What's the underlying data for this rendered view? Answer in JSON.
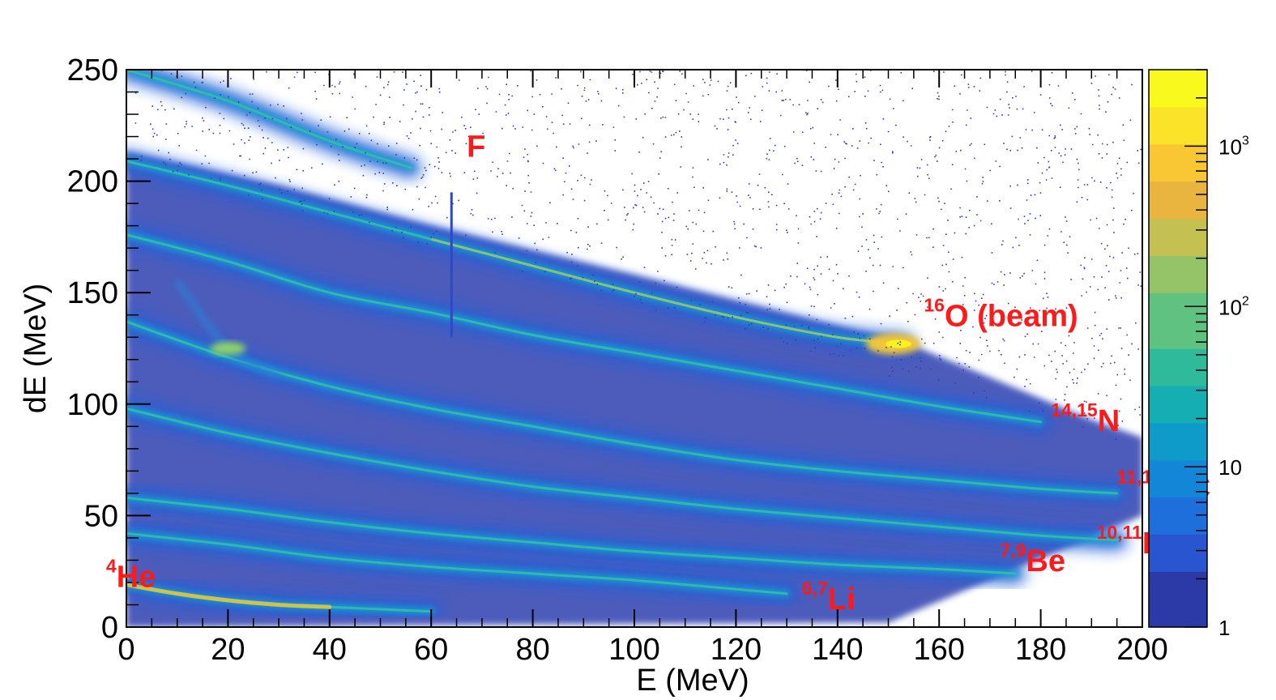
{
  "chart_data": {
    "type": "heatmap",
    "title": "",
    "xlabel": "E (MeV)",
    "ylabel": "dE (MeV)",
    "xlim": [
      0,
      200
    ],
    "ylim": [
      0,
      250
    ],
    "x_ticks": [
      "0",
      "20",
      "40",
      "60",
      "80",
      "100",
      "120",
      "140",
      "160",
      "180",
      "200"
    ],
    "y_ticks": [
      "0",
      "50",
      "100",
      "150",
      "200",
      "250"
    ],
    "colorbar": {
      "scale": "log",
      "range": [
        1,
        3000
      ],
      "tick_labels": [
        {
          "value": 1,
          "label": "1"
        },
        {
          "value": 10,
          "label": "10"
        },
        {
          "value": 100,
          "base": "10",
          "exp": "2"
        },
        {
          "value": 1000,
          "base": "10",
          "exp": "3"
        }
      ],
      "colors": [
        "#2b3aa6",
        "#2a55d0",
        "#1e6fdc",
        "#1386d8",
        "#0f9bc9",
        "#15aeb3",
        "#2fbb9b",
        "#5fc281",
        "#95c468",
        "#c5c052",
        "#e9b53e",
        "#f8c733",
        "#fbe32a",
        "#f9f91d"
      ]
    },
    "series": [
      {
        "name": "F",
        "label_x": 67,
        "label_y": 211,
        "x": [
          0,
          20,
          40,
          56
        ],
        "y": [
          250,
          236,
          218,
          206
        ]
      },
      {
        "name": "O (beam)",
        "sup": "16",
        "label_x": 157,
        "label_y": 135,
        "x": [
          0,
          20,
          40,
          60,
          80,
          100,
          120,
          140,
          153
        ],
        "y": [
          209,
          198,
          186,
          174,
          162,
          150,
          139,
          130,
          127
        ]
      },
      {
        "name": "N",
        "sup": "14,15",
        "label_x": 182,
        "label_y": 88,
        "x": [
          0,
          20,
          40,
          60,
          80,
          100,
          120,
          140,
          160,
          180
        ],
        "y": [
          176,
          164,
          150,
          141,
          131,
          123,
          115,
          107,
          99,
          92
        ]
      },
      {
        "name": "C",
        "sup": "11,12,13",
        "label_x": 195,
        "label_y": 58,
        "x": [
          0,
          20,
          40,
          60,
          80,
          100,
          120,
          140,
          160,
          180,
          195
        ],
        "y": [
          137,
          121,
          108,
          98,
          90,
          82,
          75,
          70,
          66,
          62,
          60
        ]
      },
      {
        "name": "B",
        "sup": "10,11",
        "label_x": 191,
        "label_y": 33,
        "x": [
          0,
          20,
          40,
          60,
          80,
          100,
          120,
          140,
          160,
          180,
          195
        ],
        "y": [
          98,
          87,
          78,
          70,
          63,
          58,
          53,
          49,
          45,
          41,
          39
        ]
      },
      {
        "name": "Be",
        "sup": "7,9",
        "label_x": 172,
        "label_y": 25,
        "x": [
          0,
          20,
          40,
          60,
          80,
          100,
          120,
          140,
          160,
          175
        ],
        "y": [
          58,
          53,
          47,
          42,
          38,
          34,
          31,
          28,
          26,
          24
        ]
      },
      {
        "name": "Li",
        "sup": "6,7",
        "label_x": 133,
        "label_y": 8,
        "x": [
          0,
          20,
          40,
          60,
          80,
          100,
          120,
          130
        ],
        "y": [
          42,
          37,
          31,
          27,
          24,
          21,
          17,
          15
        ]
      },
      {
        "name": "He",
        "sup": "4",
        "label_x": -4,
        "label_y": 18,
        "x": [
          0,
          10,
          20,
          30,
          40,
          50,
          60
        ],
        "y": [
          19,
          15,
          12,
          10,
          9,
          8,
          7
        ]
      }
    ],
    "features": {
      "pileup_line": {
        "x": [
          0,
          150,
          200
        ],
        "y": [
          125,
          125,
          125
        ]
      },
      "cross_feature": {
        "x": [
          10,
          20,
          30
        ],
        "y": [
          155,
          125,
          112
        ]
      },
      "beam_vertical": {
        "x": 152,
        "y": [
          20,
          250
        ]
      },
      "f_vertical": {
        "x": 64,
        "y": [
          130,
          195
        ]
      }
    }
  }
}
